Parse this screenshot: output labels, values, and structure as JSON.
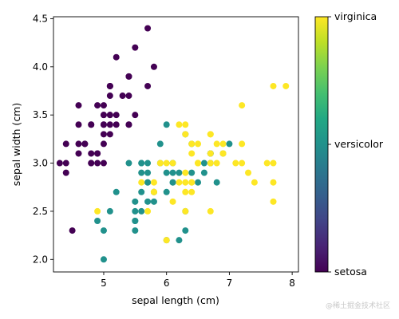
{
  "chart_data": {
    "type": "scatter",
    "xlabel": "sepal length (cm)",
    "ylabel": "sepal width (cm)",
    "xlim": [
      4.2,
      8.1
    ],
    "ylim": [
      1.87,
      4.52
    ],
    "xticks": [
      5,
      6,
      7,
      8
    ],
    "yticks": [
      2.0,
      2.5,
      3.0,
      3.5,
      4.0,
      4.5
    ],
    "grid": false,
    "colorbar": {
      "labels": [
        "setosa",
        "versicolor",
        "virginica"
      ],
      "colormap": "viridis",
      "colors": [
        "#440154",
        "#21918c",
        "#fde725"
      ]
    },
    "series": [
      {
        "name": "setosa",
        "color": "#440154",
        "points": [
          [
            5.1,
            3.5
          ],
          [
            4.9,
            3.0
          ],
          [
            4.7,
            3.2
          ],
          [
            4.6,
            3.1
          ],
          [
            5.0,
            3.6
          ],
          [
            5.4,
            3.9
          ],
          [
            4.6,
            3.4
          ],
          [
            5.0,
            3.4
          ],
          [
            4.4,
            2.9
          ],
          [
            4.9,
            3.1
          ],
          [
            5.4,
            3.7
          ],
          [
            4.8,
            3.4
          ],
          [
            4.8,
            3.0
          ],
          [
            4.3,
            3.0
          ],
          [
            5.8,
            4.0
          ],
          [
            5.7,
            4.4
          ],
          [
            5.4,
            3.9
          ],
          [
            5.1,
            3.5
          ],
          [
            5.7,
            3.8
          ],
          [
            5.1,
            3.8
          ],
          [
            5.4,
            3.4
          ],
          [
            5.1,
            3.7
          ],
          [
            4.6,
            3.6
          ],
          [
            5.1,
            3.3
          ],
          [
            4.8,
            3.4
          ],
          [
            5.0,
            3.0
          ],
          [
            5.0,
            3.4
          ],
          [
            5.2,
            3.5
          ],
          [
            5.2,
            3.4
          ],
          [
            4.7,
            3.2
          ],
          [
            4.8,
            3.1
          ],
          [
            5.4,
            3.4
          ],
          [
            5.2,
            4.1
          ],
          [
            5.5,
            4.2
          ],
          [
            4.9,
            3.1
          ],
          [
            5.0,
            3.2
          ],
          [
            5.5,
            3.5
          ],
          [
            4.9,
            3.6
          ],
          [
            4.4,
            3.0
          ],
          [
            5.1,
            3.4
          ],
          [
            5.0,
            3.5
          ],
          [
            4.5,
            2.3
          ],
          [
            4.4,
            3.2
          ],
          [
            5.0,
            3.5
          ],
          [
            5.1,
            3.8
          ],
          [
            4.8,
            3.0
          ],
          [
            5.1,
            3.8
          ],
          [
            4.6,
            3.2
          ],
          [
            5.3,
            3.7
          ],
          [
            5.0,
            3.3
          ]
        ]
      },
      {
        "name": "versicolor",
        "color": "#21918c",
        "points": [
          [
            7.0,
            3.2
          ],
          [
            6.4,
            3.2
          ],
          [
            6.9,
            3.1
          ],
          [
            5.5,
            2.3
          ],
          [
            6.5,
            2.8
          ],
          [
            5.7,
            2.8
          ],
          [
            6.3,
            3.3
          ],
          [
            4.9,
            2.4
          ],
          [
            6.6,
            2.9
          ],
          [
            5.2,
            2.7
          ],
          [
            5.0,
            2.0
          ],
          [
            5.9,
            3.0
          ],
          [
            6.0,
            2.2
          ],
          [
            6.1,
            2.9
          ],
          [
            5.6,
            2.9
          ],
          [
            6.7,
            3.1
          ],
          [
            5.6,
            3.0
          ],
          [
            5.8,
            2.7
          ],
          [
            6.2,
            2.2
          ],
          [
            5.6,
            2.5
          ],
          [
            5.9,
            3.2
          ],
          [
            6.1,
            2.8
          ],
          [
            6.3,
            2.5
          ],
          [
            6.1,
            2.8
          ],
          [
            6.4,
            2.9
          ],
          [
            6.6,
            3.0
          ],
          [
            6.8,
            2.8
          ],
          [
            6.7,
            3.0
          ],
          [
            6.0,
            2.9
          ],
          [
            5.7,
            2.6
          ],
          [
            5.5,
            2.4
          ],
          [
            5.5,
            2.4
          ],
          [
            5.8,
            2.7
          ],
          [
            6.0,
            2.7
          ],
          [
            5.4,
            3.0
          ],
          [
            6.0,
            3.4
          ],
          [
            6.7,
            3.1
          ],
          [
            6.3,
            2.3
          ],
          [
            5.6,
            3.0
          ],
          [
            5.5,
            2.5
          ],
          [
            5.5,
            2.6
          ],
          [
            6.1,
            3.0
          ],
          [
            5.8,
            2.6
          ],
          [
            5.0,
            2.3
          ],
          [
            5.6,
            2.7
          ],
          [
            5.7,
            3.0
          ],
          [
            5.7,
            2.9
          ],
          [
            6.2,
            2.9
          ],
          [
            5.1,
            2.5
          ],
          [
            5.7,
            2.8
          ]
        ]
      },
      {
        "name": "virginica",
        "color": "#fde725",
        "points": [
          [
            6.3,
            3.3
          ],
          [
            5.8,
            2.7
          ],
          [
            7.1,
            3.0
          ],
          [
            6.3,
            2.9
          ],
          [
            6.5,
            3.0
          ],
          [
            7.6,
            3.0
          ],
          [
            4.9,
            2.5
          ],
          [
            7.3,
            2.9
          ],
          [
            6.7,
            2.5
          ],
          [
            7.2,
            3.6
          ],
          [
            6.5,
            3.2
          ],
          [
            6.4,
            2.7
          ],
          [
            6.8,
            3.0
          ],
          [
            5.7,
            2.5
          ],
          [
            5.8,
            2.8
          ],
          [
            6.4,
            3.2
          ],
          [
            6.5,
            3.0
          ],
          [
            7.7,
            3.8
          ],
          [
            7.7,
            2.6
          ],
          [
            6.0,
            2.2
          ],
          [
            6.9,
            3.2
          ],
          [
            5.6,
            2.8
          ],
          [
            7.7,
            2.8
          ],
          [
            6.3,
            2.7
          ],
          [
            6.7,
            3.3
          ],
          [
            7.2,
            3.2
          ],
          [
            6.2,
            2.8
          ],
          [
            6.1,
            3.0
          ],
          [
            6.4,
            2.8
          ],
          [
            7.2,
            3.0
          ],
          [
            7.4,
            2.8
          ],
          [
            7.9,
            3.8
          ],
          [
            6.4,
            2.8
          ],
          [
            6.3,
            2.8
          ],
          [
            6.1,
            2.6
          ],
          [
            7.7,
            3.0
          ],
          [
            6.3,
            3.4
          ],
          [
            6.4,
            3.1
          ],
          [
            6.0,
            3.0
          ],
          [
            6.9,
            3.1
          ],
          [
            6.7,
            3.1
          ],
          [
            6.9,
            3.1
          ],
          [
            5.8,
            2.7
          ],
          [
            6.8,
            3.2
          ],
          [
            6.7,
            3.3
          ],
          [
            6.7,
            3.0
          ],
          [
            6.3,
            2.5
          ],
          [
            6.5,
            3.0
          ],
          [
            6.2,
            3.4
          ],
          [
            5.9,
            3.0
          ]
        ]
      }
    ]
  },
  "watermark": "@稀土掘金技术社区"
}
